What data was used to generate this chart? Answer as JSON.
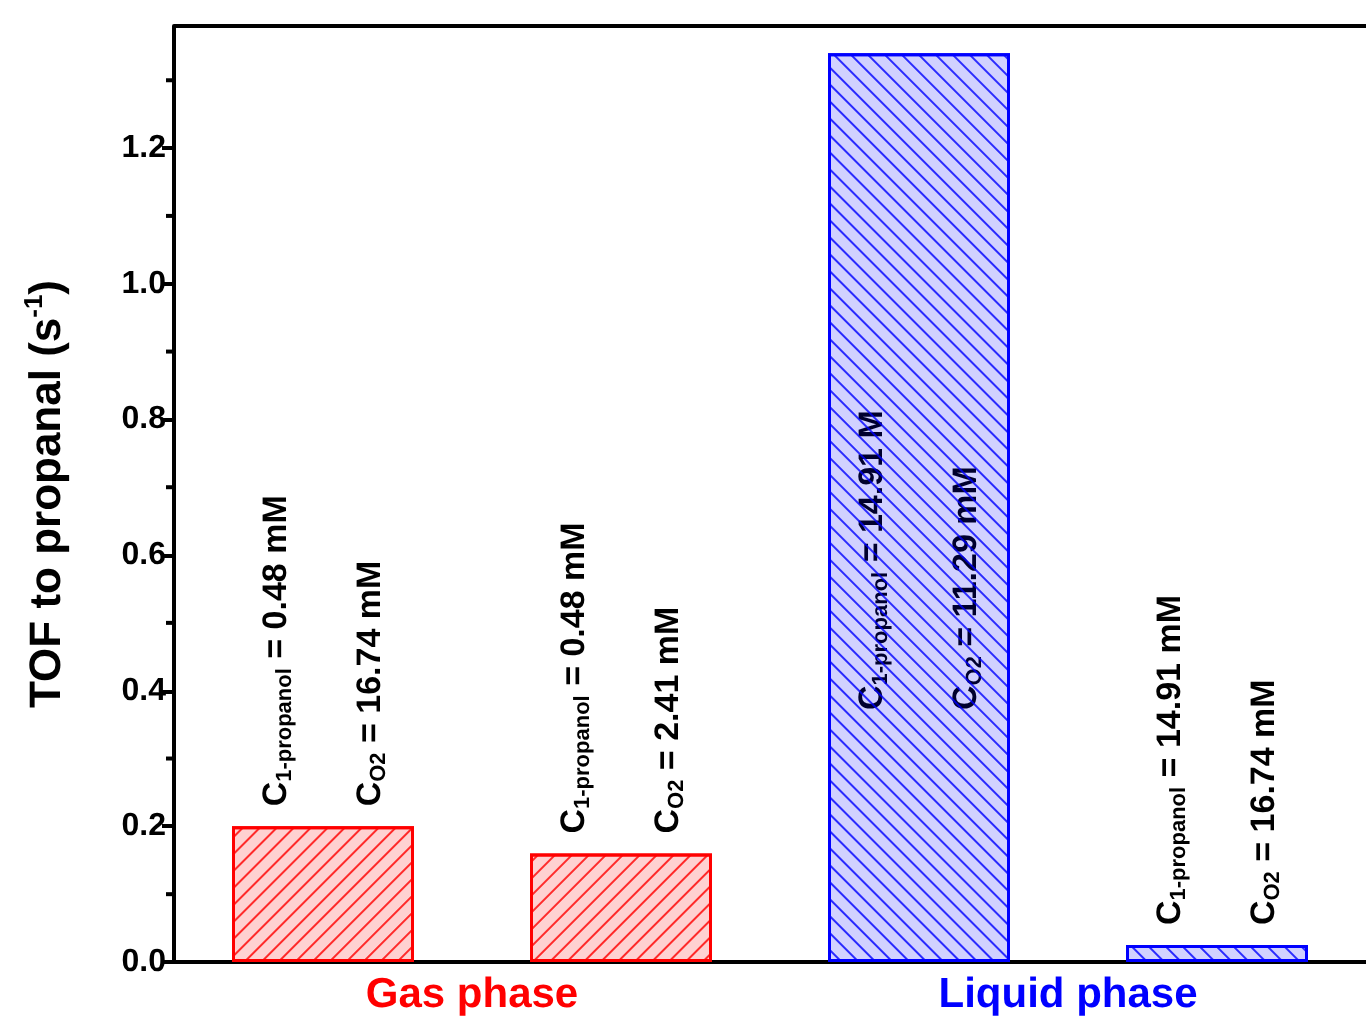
{
  "chart_data": {
    "type": "bar",
    "ylabel": "TOF to propanal (s$^{-1}$)",
    "categories": [
      null,
      null,
      null,
      null
    ],
    "values": [
      0.2,
      0.16,
      1.34,
      0.025
    ],
    "colors": [
      "#ff0000",
      "#ff0000",
      "#0000ff",
      "#0000ff"
    ],
    "ylim": [
      0,
      1.38
    ],
    "yticks": [
      {
        "value": 0,
        "label": "0.0"
      },
      {
        "value": 0.2,
        "label": "0.2"
      },
      {
        "value": 0.4,
        "label": "0.4"
      },
      {
        "value": 0.6,
        "label": "0.6"
      },
      {
        "value": 0.8,
        "label": "0.8"
      },
      {
        "value": 1.0,
        "label": "1.0"
      },
      {
        "value": 1.2,
        "label": "1.2"
      }
    ],
    "grid": false,
    "annotations": [
      "C$_{1-propanol}$ = 0.48 mM",
      "C$_{O2}$ = 16.74 mM",
      "C$_{1-propanol}$ = 0.48 mM",
      "C$_{O2}$ = 2.41 mM",
      "C$_{1-propanol}$ = 14.91 M",
      "C$_{O2}$ = 11.29 mM",
      "C$_{1-propanol}$ = 14.91 mM",
      "C$_{O2}$ = 16.74 mM",
      "Gas phase",
      "Liquid phase"
    ]
  }
}
